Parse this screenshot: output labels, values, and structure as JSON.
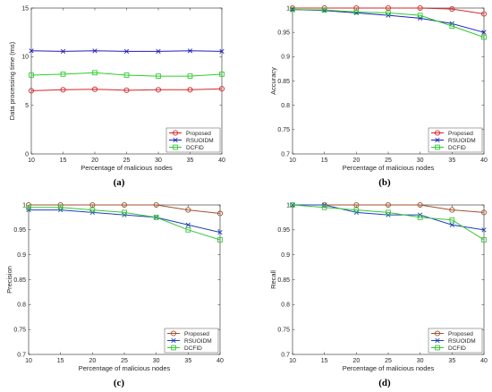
{
  "colors": {
    "proposed": "#d62728",
    "rsuoidm": "#1f1fbf",
    "dcfid": "#2ecc2e",
    "proposed_c": "#a0522d",
    "rsuoidm_c": "#1f3fbf",
    "dcfid_c": "#3ac43a"
  },
  "chart_data": [
    {
      "type": "line",
      "caption": "(a)",
      "xlabel": "Percentage of malicious nodes",
      "ylabel": "Data processing time (ms)",
      "x": [
        10,
        15,
        20,
        25,
        30,
        35,
        40
      ],
      "xlim": [
        10,
        40
      ],
      "ylim": [
        0,
        15
      ],
      "xticks": [
        "10",
        "15",
        "20",
        "25",
        "30",
        "35",
        "40"
      ],
      "yticks": [
        "0",
        "5",
        "10",
        "15"
      ],
      "ytick_values": [
        0,
        5,
        10,
        15
      ],
      "legend_position": "bottom-right",
      "series": [
        {
          "name": "Proposed",
          "marker": "circle",
          "color_key": "proposed",
          "values": [
            6.5,
            6.6,
            6.65,
            6.55,
            6.6,
            6.6,
            6.7
          ]
        },
        {
          "name": "RSUOIDM",
          "marker": "x",
          "color_key": "rsuoidm",
          "values": [
            10.6,
            10.55,
            10.6,
            10.55,
            10.55,
            10.6,
            10.55
          ]
        },
        {
          "name": "DCFID",
          "marker": "square",
          "color_key": "dcfid",
          "values": [
            8.1,
            8.2,
            8.35,
            8.1,
            8.0,
            8.0,
            8.2
          ]
        }
      ]
    },
    {
      "type": "line",
      "caption": "(b)",
      "xlabel": "Percentage of malicious nodes",
      "ylabel": "Accuracy",
      "x": [
        10,
        15,
        20,
        25,
        30,
        35,
        40
      ],
      "xlim": [
        10,
        40
      ],
      "ylim": [
        0.7,
        1.0
      ],
      "xticks": [
        "10",
        "15",
        "20",
        "25",
        "30",
        "35",
        "40"
      ],
      "yticks": [
        "0.7",
        "0.75",
        "0.8",
        "0.85",
        "0.9",
        "0.95",
        "1"
      ],
      "ytick_values": [
        0.7,
        0.75,
        0.8,
        0.85,
        0.9,
        0.95,
        1.0
      ],
      "legend_position": "bottom-right",
      "series": [
        {
          "name": "Proposed",
          "marker": "circle",
          "color_key": "proposed",
          "values": [
            1.0,
            1.0,
            1.0,
            1.0,
            1.0,
            0.998,
            0.988
          ]
        },
        {
          "name": "RSUOIDM",
          "marker": "x",
          "color_key": "rsuoidm",
          "values": [
            0.997,
            0.995,
            0.99,
            0.985,
            0.979,
            0.968,
            0.95
          ]
        },
        {
          "name": "DCFID",
          "marker": "square",
          "color_key": "dcfid",
          "values": [
            0.997,
            0.996,
            0.992,
            0.99,
            0.985,
            0.963,
            0.94
          ]
        }
      ]
    },
    {
      "type": "line",
      "caption": "(c)",
      "xlabel": "Percentage of malicious nodes",
      "ylabel": "Precision",
      "x": [
        10,
        15,
        20,
        25,
        30,
        35,
        40
      ],
      "xlim": [
        10,
        40
      ],
      "ylim": [
        0.7,
        1.0
      ],
      "xticks": [
        "10",
        "15",
        "20",
        "25",
        "30",
        "35",
        "40"
      ],
      "yticks": [
        "0.7",
        "0.75",
        "0.8",
        "0.85",
        "0.9",
        "0.95",
        "1"
      ],
      "ytick_values": [
        0.7,
        0.75,
        0.8,
        0.85,
        0.9,
        0.95,
        1.0
      ],
      "legend_position": "bottom-right",
      "series": [
        {
          "name": "Proposed",
          "marker": "circle",
          "color_key": "proposed_c",
          "values": [
            1.0,
            1.0,
            1.0,
            1.0,
            1.0,
            0.99,
            0.983
          ]
        },
        {
          "name": "RSUOIDM",
          "marker": "x",
          "color_key": "rsuoidm_c",
          "values": [
            0.99,
            0.99,
            0.985,
            0.98,
            0.975,
            0.96,
            0.945
          ]
        },
        {
          "name": "DCFID",
          "marker": "square",
          "color_key": "dcfid_c",
          "values": [
            0.995,
            0.995,
            0.99,
            0.985,
            0.975,
            0.95,
            0.93
          ]
        }
      ]
    },
    {
      "type": "line",
      "caption": "(d)",
      "xlabel": "Percentage of malicious nodes",
      "ylabel": "Recall",
      "x": [
        10,
        15,
        20,
        25,
        30,
        35,
        40
      ],
      "xlim": [
        10,
        40
      ],
      "ylim": [
        0.7,
        1.0
      ],
      "xticks": [
        "10",
        "15",
        "20",
        "25",
        "30",
        "35",
        "40"
      ],
      "yticks": [
        "0.7",
        "0.75",
        "0.8",
        "0.85",
        "0.9",
        "0.95",
        "1"
      ],
      "ytick_values": [
        0.7,
        0.75,
        0.8,
        0.85,
        0.9,
        0.95,
        1.0
      ],
      "legend_position": "bottom-right",
      "series": [
        {
          "name": "Proposed",
          "marker": "circle",
          "color_key": "proposed_c",
          "values": [
            1.0,
            1.0,
            1.0,
            1.0,
            1.0,
            0.99,
            0.985
          ]
        },
        {
          "name": "RSUOIDM",
          "marker": "x",
          "color_key": "rsuoidm_c",
          "values": [
            1.0,
            1.0,
            0.985,
            0.98,
            0.98,
            0.96,
            0.95
          ]
        },
        {
          "name": "DCFID",
          "marker": "square",
          "color_key": "dcfid_c",
          "values": [
            1.0,
            0.995,
            0.99,
            0.985,
            0.975,
            0.97,
            0.93
          ]
        }
      ]
    }
  ]
}
